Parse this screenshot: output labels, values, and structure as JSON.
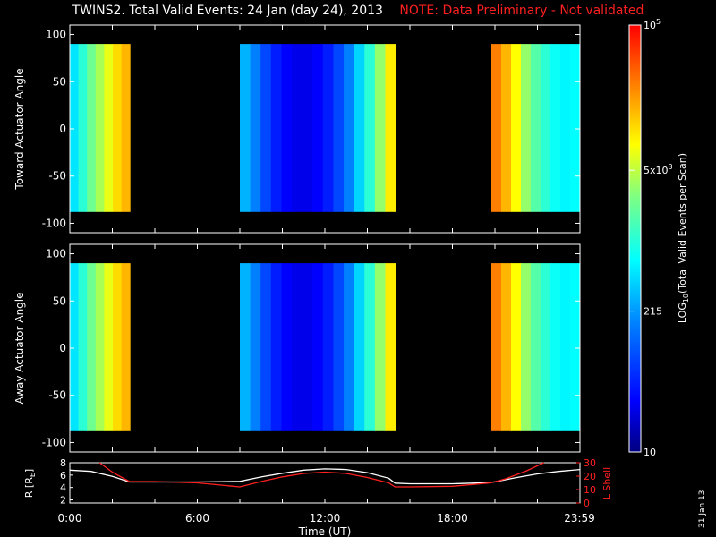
{
  "header": {
    "title": "TWINS2. Total Valid Events: 24 Jan (day  24), 2013",
    "note": "NOTE: Data Preliminary - Not validated"
  },
  "date_stamp": "31 Jan 13",
  "chart_data": [
    {
      "type": "heatmap",
      "ylabel": "Toward Actuator Angle",
      "ylim": [
        -110,
        110
      ],
      "yticks": [
        100,
        50,
        0,
        -50,
        -100
      ],
      "xlim": [
        0,
        24
      ],
      "angle_range": [
        -88,
        90
      ],
      "segments": [
        {
          "start": 0.0,
          "end": 2.83,
          "profile": [
            0.42,
            0.5,
            0.58,
            0.64,
            0.7,
            0.76,
            0.8
          ]
        },
        {
          "start": 8.0,
          "end": 15.33,
          "profile": [
            0.36,
            0.3,
            0.22,
            0.16,
            0.12,
            0.1,
            0.1,
            0.12,
            0.16,
            0.22,
            0.3,
            0.4,
            0.5,
            0.62,
            0.74
          ]
        },
        {
          "start": 19.83,
          "end": 24.0,
          "profile": [
            0.86,
            0.8,
            0.72,
            0.62,
            0.55,
            0.5,
            0.46,
            0.44,
            0.45
          ]
        }
      ]
    },
    {
      "type": "heatmap",
      "ylabel": "Away Actuator Angle",
      "ylim": [
        -110,
        110
      ],
      "yticks": [
        100,
        50,
        0,
        -50,
        -100
      ],
      "xlim": [
        0,
        24
      ],
      "angle_range": [
        -88,
        90
      ],
      "segments": [
        {
          "start": 0.0,
          "end": 2.83,
          "profile": [
            0.42,
            0.5,
            0.58,
            0.64,
            0.7,
            0.76,
            0.8
          ]
        },
        {
          "start": 8.0,
          "end": 15.33,
          "profile": [
            0.36,
            0.3,
            0.22,
            0.16,
            0.12,
            0.1,
            0.1,
            0.12,
            0.16,
            0.22,
            0.3,
            0.4,
            0.5,
            0.62,
            0.74
          ]
        },
        {
          "start": 19.83,
          "end": 24.0,
          "profile": [
            0.86,
            0.8,
            0.72,
            0.62,
            0.55,
            0.5,
            0.46,
            0.44,
            0.45
          ]
        }
      ]
    },
    {
      "type": "line",
      "xlabel": "Time (UT)",
      "xticks": [
        "0:00",
        "6:00",
        "12:00",
        "18:00",
        "23:59"
      ],
      "xtick_hours": [
        0,
        6,
        12,
        18,
        23.98
      ],
      "left_axis": {
        "label": "R [R",
        "label_sub": "E",
        "label_end": "]",
        "ylim": [
          1.5,
          8
        ],
        "ticks": [
          8,
          6,
          4,
          2
        ]
      },
      "right_axis": {
        "label": "L Shell",
        "ylim": [
          0,
          30
        ],
        "ticks": [
          30,
          20,
          10,
          0
        ],
        "color": "#ff2020"
      },
      "series": [
        {
          "axis": "left",
          "color": "#ffffff",
          "x": [
            0,
            1,
            2,
            2.8,
            4,
            6,
            8,
            9,
            10,
            11,
            12,
            13,
            14,
            15,
            15.3,
            16,
            18,
            19.8,
            21,
            22,
            23,
            24
          ],
          "y": [
            6.8,
            6.6,
            5.8,
            4.9,
            4.9,
            4.9,
            5.0,
            5.7,
            6.3,
            6.8,
            7.0,
            6.9,
            6.4,
            5.5,
            4.7,
            4.6,
            4.6,
            4.8,
            5.6,
            6.2,
            6.6,
            6.9
          ]
        },
        {
          "axis": "right",
          "color": "#ff2020",
          "x": [
            1.4,
            2,
            2.8,
            4,
            6,
            8,
            9,
            10,
            11,
            12,
            13,
            14,
            15,
            15.3,
            16,
            18,
            19.8,
            20.5,
            21.5,
            22.3
          ],
          "y": [
            30,
            23,
            16,
            16,
            15,
            12,
            16,
            19.5,
            22,
            23,
            22,
            19,
            15,
            12,
            12,
            12.5,
            15,
            18,
            24,
            30
          ]
        }
      ]
    }
  ],
  "colorbar": {
    "label": "LOG",
    "label_sub": "10",
    "label_rest": "(Total Valid Events per Scan)",
    "tick_labels": [
      {
        "base": "10",
        "exp": "5",
        "pos": 1.0
      },
      {
        "base": "5x10",
        "exp": "3",
        "pos": 0.66
      },
      {
        "base": "215",
        "exp": "",
        "pos": 0.33
      },
      {
        "base": "10",
        "exp": "",
        "pos": 0.0
      }
    ]
  }
}
